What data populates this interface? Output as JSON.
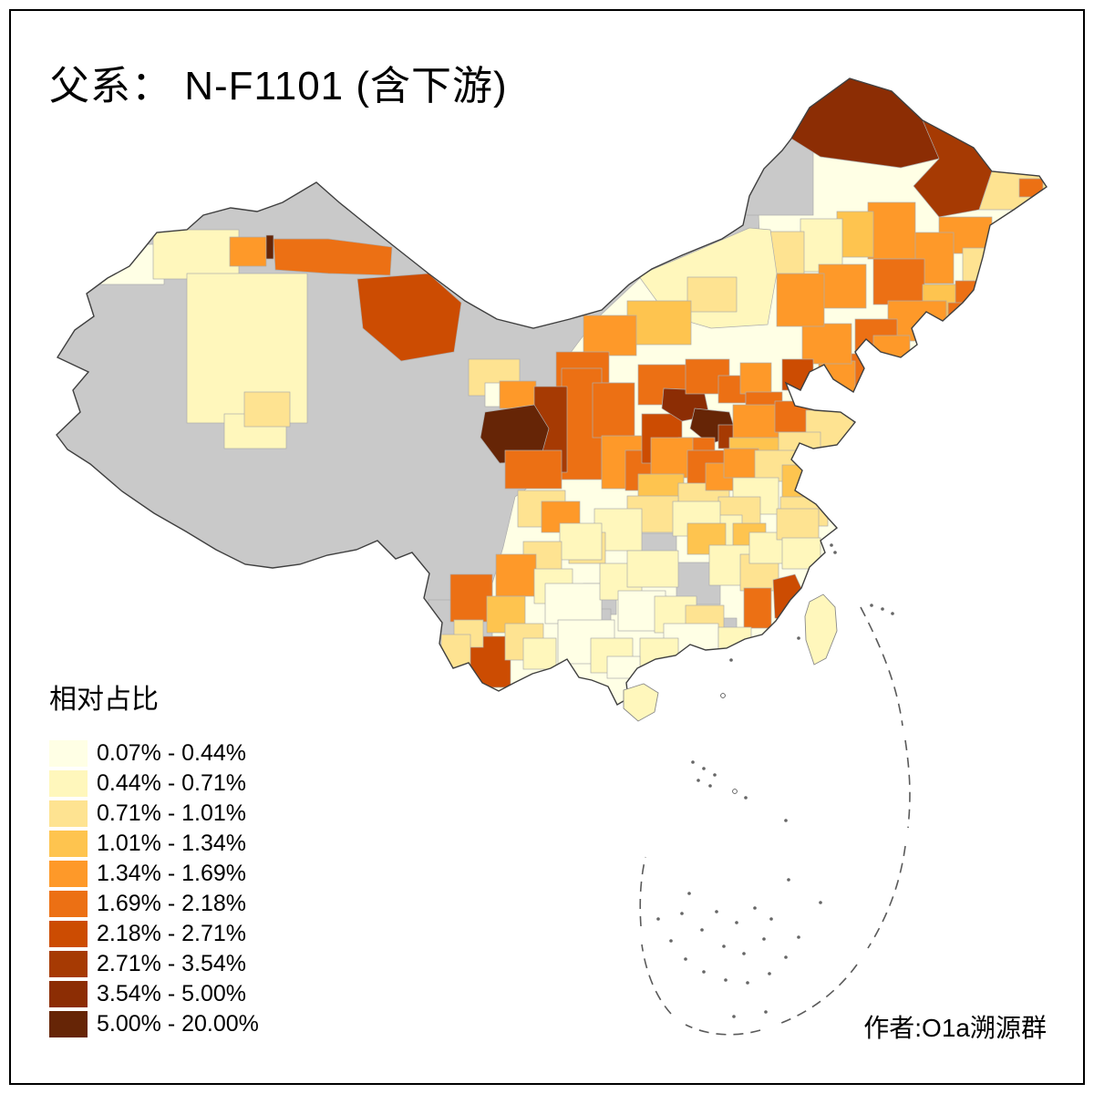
{
  "title": "父系： N-F1101 (含下游)",
  "legend": {
    "title": "相对占比",
    "items": [
      {
        "range": "0.07% - 0.44%",
        "color": "#FFFFE5"
      },
      {
        "range": "0.44% - 0.71%",
        "color": "#FFF7BC"
      },
      {
        "range": "0.71% - 1.01%",
        "color": "#FEE391"
      },
      {
        "range": "1.01% - 1.34%",
        "color": "#FEC44F"
      },
      {
        "range": "1.34% - 1.69%",
        "color": "#FE9929"
      },
      {
        "range": "1.69% - 2.18%",
        "color": "#EC7014"
      },
      {
        "range": "2.18% - 2.71%",
        "color": "#CC4C02"
      },
      {
        "range": "2.71% - 3.54%",
        "color": "#A63A03"
      },
      {
        "range": "3.54% - 5.00%",
        "color": "#8C2D04"
      },
      {
        "range": "5.00% - 20.00%",
        "color": "#662506"
      }
    ]
  },
  "attribution": "作者:O1a溯源群",
  "map": {
    "no_data_color": "#C9C9C9",
    "border_color": "#3F3F3F",
    "background": "#FFFFFF"
  }
}
